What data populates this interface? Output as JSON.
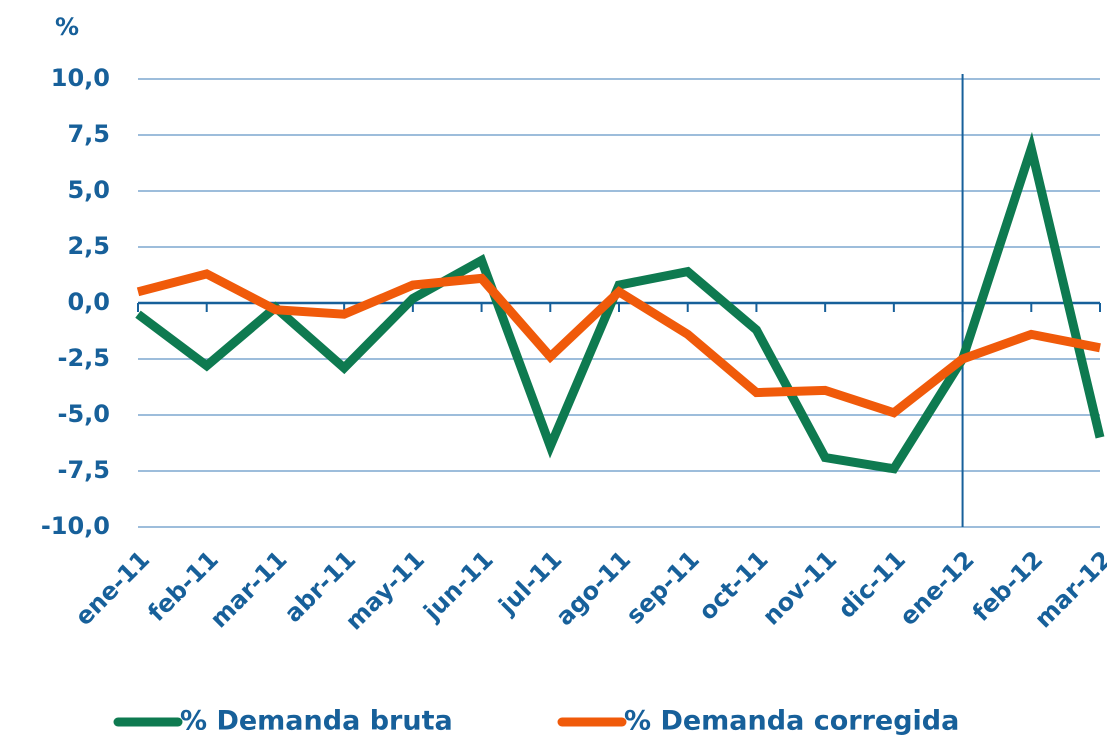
{
  "chart_data": {
    "type": "line",
    "y_label": "%",
    "categories": [
      "ene-11",
      "feb-11",
      "mar-11",
      "abr-11",
      "may-11",
      "jun-11",
      "jul-11",
      "ago-11",
      "sep-11",
      "oct-11",
      "nov-11",
      "dic-11",
      "ene-12",
      "feb-12",
      "mar-12"
    ],
    "series": [
      {
        "name": "% Demanda bruta",
        "color": "#0e7a50",
        "values": [
          -0.5,
          -2.8,
          -0.2,
          -2.9,
          0.2,
          1.9,
          -6.4,
          0.8,
          1.4,
          -1.2,
          -6.9,
          -7.4,
          -2.5,
          6.9,
          -6.0
        ]
      },
      {
        "name": "% Demanda corregida",
        "color": "#f05a0a",
        "values": [
          0.5,
          1.3,
          -0.3,
          -0.5,
          0.8,
          1.1,
          -2.4,
          0.5,
          -1.4,
          -4.0,
          -3.9,
          -4.9,
          -2.5,
          -1.4,
          -2.0
        ]
      }
    ],
    "ylim": [
      -10,
      10
    ],
    "yticks": [
      {
        "value": 10,
        "label": "10,0"
      },
      {
        "value": 7.5,
        "label": "7,5"
      },
      {
        "value": 5,
        "label": "5,0"
      },
      {
        "value": 2.5,
        "label": "2,5"
      },
      {
        "value": 0,
        "label": "0,0"
      },
      {
        "value": -2.5,
        "label": "-2,5"
      },
      {
        "value": -5,
        "label": "-5,0"
      },
      {
        "value": -7.5,
        "label": "-7,5"
      },
      {
        "value": -10,
        "label": "-10,0"
      }
    ],
    "grid": true
  }
}
